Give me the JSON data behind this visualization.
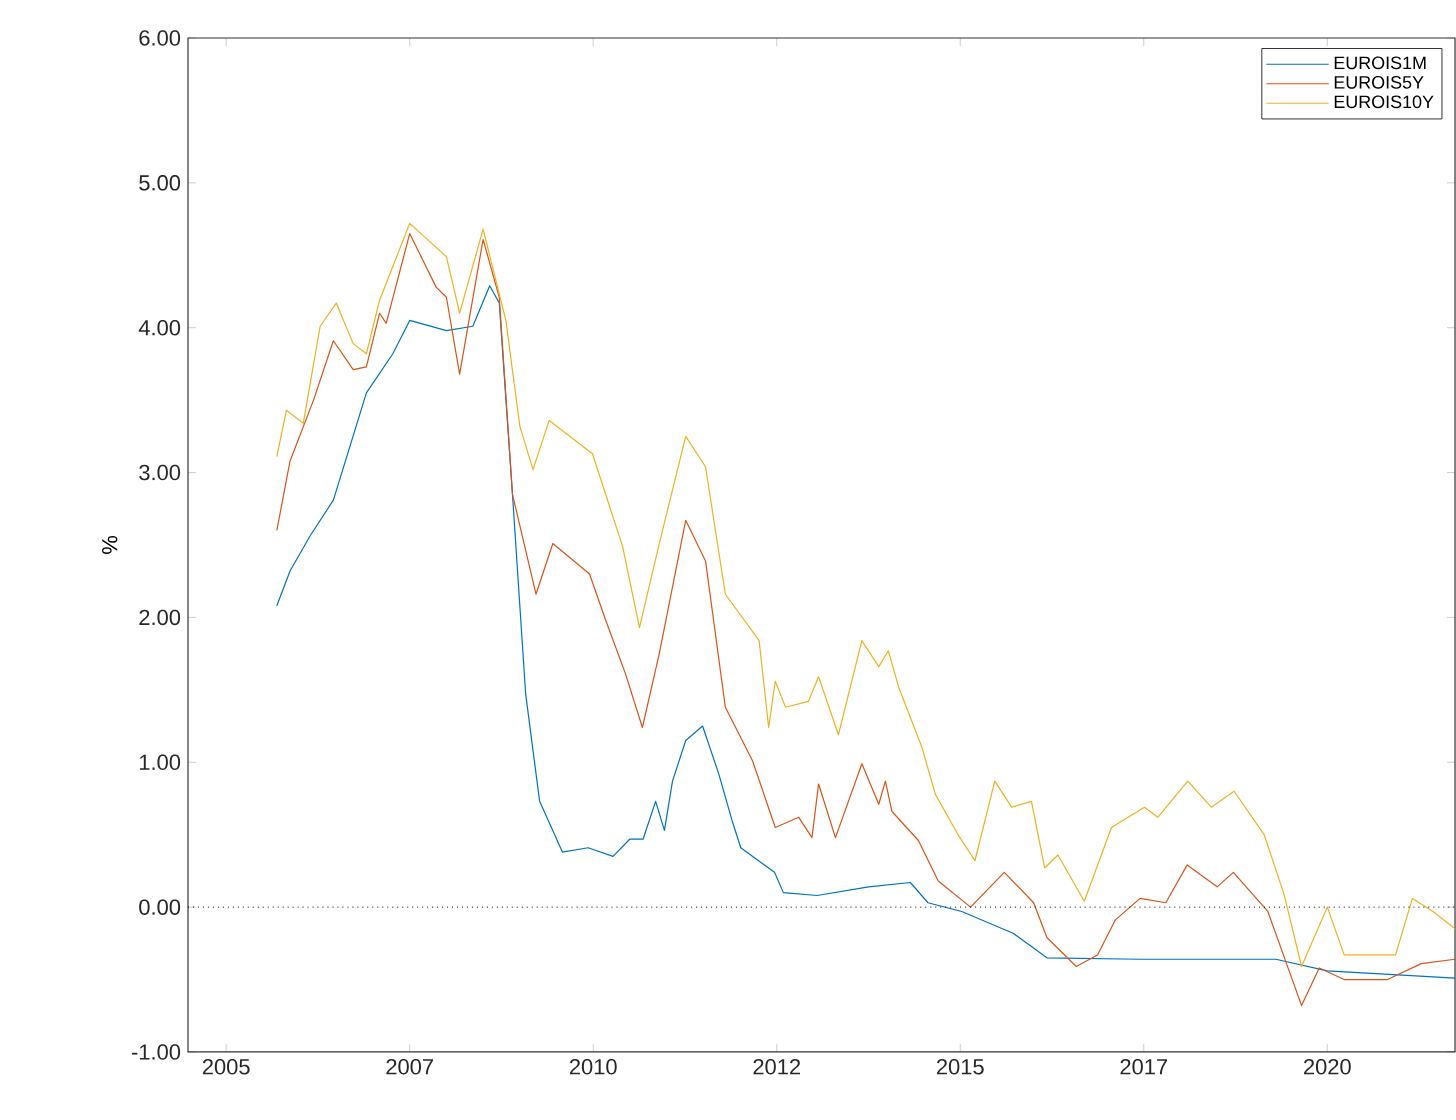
{
  "chart_data": {
    "type": "line",
    "ylabel": "%",
    "xlim": [
      2004.48,
      2021.74
    ],
    "ylim": [
      -1,
      6
    ],
    "xticks": [
      2005,
      {
        "value": 2007.5,
        "label": "2007"
      },
      2010,
      {
        "value": 2012.5,
        "label": "2012"
      },
      2015,
      {
        "value": 2017.5,
        "label": "2017"
      },
      2020
    ],
    "yticks": [
      {
        "value": -1,
        "label": "-1.00"
      },
      {
        "value": 0,
        "label": "0.00"
      },
      {
        "value": 1,
        "label": "1.00"
      },
      {
        "value": 2,
        "label": "2.00"
      },
      {
        "value": 3,
        "label": "3.00"
      },
      {
        "value": 4,
        "label": "4.00"
      },
      {
        "value": 5,
        "label": "5.00"
      },
      {
        "value": 6,
        "label": "6.00"
      }
    ],
    "legend": "top right",
    "grid": false,
    "marker": "none",
    "line_style": "solid",
    "ref_lines": [
      {
        "axis": "y",
        "value": 0,
        "line_style": "dotted",
        "color": "#000000"
      }
    ],
    "series": [
      {
        "name": "EUROIS1M",
        "color": "#0072bd",
        "x": [
          2005.69,
          2005.87,
          2006.14,
          2006.46,
          2006.91,
          2007.27,
          2007.5,
          2008.0,
          2008.36,
          2008.59,
          2008.72,
          2008.9,
          2009.08,
          2009.27,
          2009.58,
          2009.93,
          2010.27,
          2010.5,
          2010.68,
          2010.85,
          2010.97,
          2011.08,
          2011.26,
          2011.49,
          2011.71,
          2011.89,
          2012.01,
          2012.47,
          2012.59,
          2013.05,
          2013.75,
          2014.32,
          2014.56,
          2015.02,
          2015.72,
          2016.18,
          2017.45,
          2019.3,
          2020.0,
          2021.74
        ],
        "values": [
          2.08,
          2.32,
          2.56,
          2.81,
          3.55,
          3.82,
          4.05,
          3.98,
          4.01,
          4.29,
          4.17,
          2.85,
          1.47,
          0.73,
          0.38,
          0.41,
          0.35,
          0.47,
          0.47,
          0.73,
          0.53,
          0.87,
          1.15,
          1.25,
          0.92,
          0.6,
          0.41,
          0.24,
          0.1,
          0.08,
          0.14,
          0.17,
          0.03,
          -0.03,
          -0.18,
          -0.35,
          -0.36,
          -0.36,
          -0.44,
          -0.49
        ]
      },
      {
        "name": "EUROIS5Y",
        "color": "#d95319",
        "x": [
          2005.69,
          2005.87,
          2006.19,
          2006.46,
          2006.73,
          2006.91,
          2007.09,
          2007.18,
          2007.5,
          2007.86,
          2008.0,
          2008.18,
          2008.5,
          2008.72,
          2008.9,
          2009.22,
          2009.45,
          2009.95,
          2010.17,
          2010.44,
          2010.67,
          2010.9,
          2011.26,
          2011.53,
          2011.8,
          2012.17,
          2012.48,
          2012.8,
          2012.98,
          2013.07,
          2013.3,
          2013.66,
          2013.89,
          2013.98,
          2014.07,
          2014.43,
          2014.7,
          2015.14,
          2015.6,
          2016.0,
          2016.18,
          2016.58,
          2016.87,
          2017.11,
          2017.45,
          2017.8,
          2018.09,
          2018.5,
          2018.72,
          2019.19,
          2019.65,
          2019.89,
          2020.23,
          2020.82,
          2021.28,
          2021.74
        ],
        "values": [
          2.6,
          3.08,
          3.5,
          3.91,
          3.71,
          3.73,
          4.1,
          4.03,
          4.65,
          4.28,
          4.21,
          3.68,
          4.61,
          4.21,
          2.85,
          2.16,
          2.51,
          2.3,
          1.98,
          1.61,
          1.24,
          1.75,
          2.67,
          2.39,
          1.38,
          1.01,
          0.55,
          0.62,
          0.48,
          0.85,
          0.48,
          0.99,
          0.71,
          0.87,
          0.66,
          0.46,
          0.18,
          0.0,
          0.24,
          0.03,
          -0.21,
          -0.41,
          -0.33,
          -0.09,
          0.06,
          0.03,
          0.29,
          0.14,
          0.24,
          -0.03,
          -0.68,
          -0.42,
          -0.5,
          -0.5,
          -0.39,
          -0.36
        ]
      },
      {
        "name": "EUROIS10Y",
        "color": "#edb120",
        "x": [
          2005.69,
          2005.82,
          2006.05,
          2006.28,
          2006.5,
          2006.73,
          2006.91,
          2007.09,
          2007.5,
          2008.0,
          2008.18,
          2008.5,
          2008.81,
          2009.0,
          2009.18,
          2009.4,
          2009.99,
          2010.4,
          2010.63,
          2010.9,
          2011.26,
          2011.53,
          2011.8,
          2012.26,
          2012.39,
          2012.48,
          2012.62,
          2012.93,
          2013.07,
          2013.34,
          2013.66,
          2013.89,
          2014.02,
          2014.16,
          2014.48,
          2014.66,
          2014.97,
          2015.2,
          2015.47,
          2015.7,
          2015.97,
          2016.15,
          2016.33,
          2016.69,
          2017.06,
          2017.51,
          2017.69,
          2018.1,
          2018.42,
          2018.73,
          2019.14,
          2019.41,
          2019.65,
          2020.0,
          2020.23,
          2020.93,
          2021.16,
          2021.44,
          2021.74
        ],
        "values": [
          3.11,
          3.43,
          3.34,
          4.01,
          4.17,
          3.89,
          3.82,
          4.19,
          4.72,
          4.49,
          4.1,
          4.68,
          4.05,
          3.32,
          3.02,
          3.36,
          3.13,
          2.49,
          1.93,
          2.51,
          3.25,
          3.04,
          2.16,
          1.84,
          1.24,
          1.56,
          1.38,
          1.42,
          1.59,
          1.19,
          1.84,
          1.66,
          1.77,
          1.52,
          1.1,
          0.78,
          0.5,
          0.32,
          0.87,
          0.69,
          0.73,
          0.27,
          0.36,
          0.04,
          0.55,
          0.69,
          0.62,
          0.87,
          0.69,
          0.8,
          0.5,
          0.09,
          -0.41,
          0.0,
          -0.33,
          -0.33,
          0.06,
          -0.03,
          -0.15
        ]
      }
    ]
  }
}
